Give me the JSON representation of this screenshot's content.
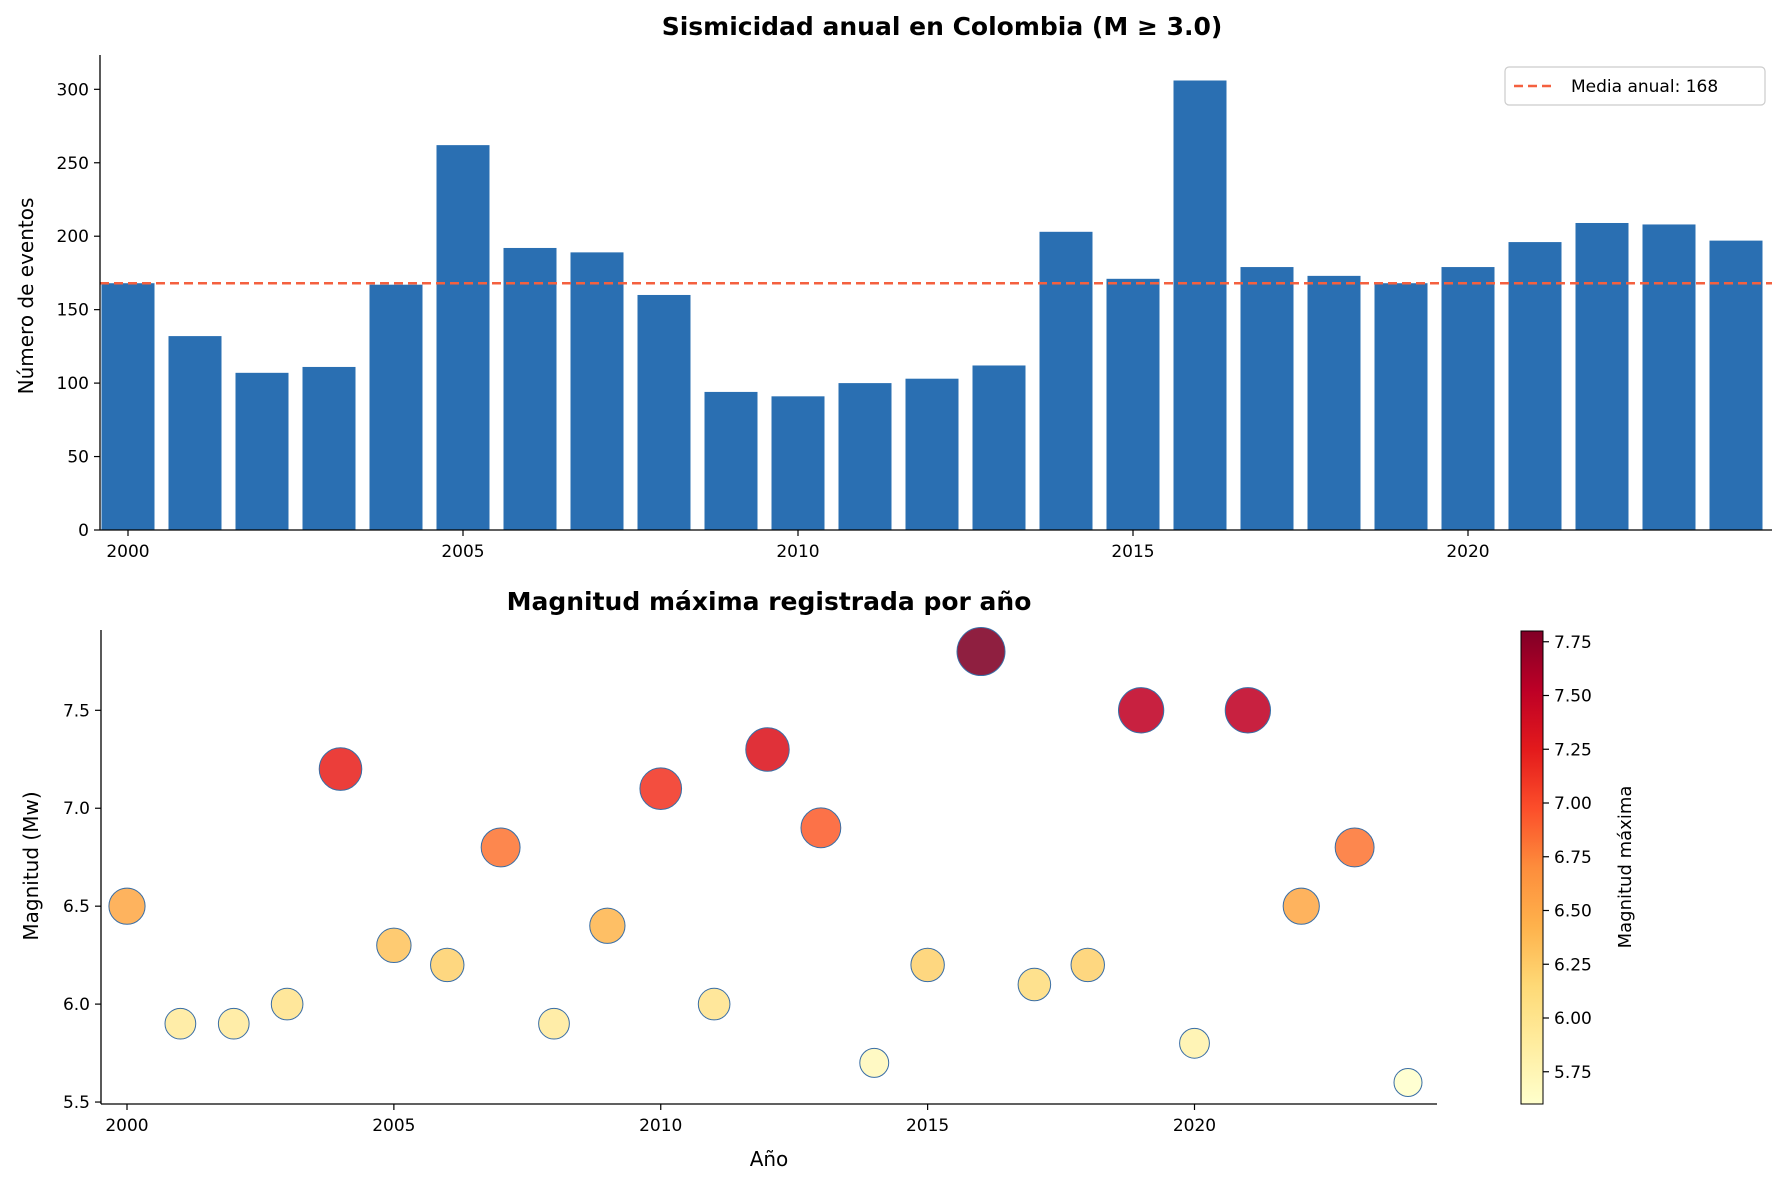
{
  "chart_data": [
    {
      "type": "bar",
      "title": "Sismicidad anual en Colombia (M ≥ 3.0)",
      "xlabel": "",
      "ylabel": "Número de eventos",
      "categories": [
        2000,
        2001,
        2002,
        2003,
        2004,
        2005,
        2006,
        2007,
        2008,
        2009,
        2010,
        2011,
        2012,
        2013,
        2014,
        2015,
        2016,
        2017,
        2018,
        2019,
        2020,
        2021,
        2022,
        2023,
        2024
      ],
      "values": [
        168,
        132,
        107,
        111,
        167,
        262,
        192,
        189,
        160,
        94,
        91,
        100,
        103,
        112,
        203,
        171,
        306,
        179,
        173,
        168,
        179,
        196,
        209,
        208,
        197
      ],
      "ylim": [
        0,
        322
      ],
      "yticks": [
        0,
        50,
        100,
        150,
        200,
        250,
        300
      ],
      "xticks": [
        2000,
        2005,
        2010,
        2015,
        2020
      ],
      "bar_color": "#2a6fb2",
      "mean_line": {
        "value": 168,
        "label": "Media anual: 168",
        "color": "#f4603f"
      },
      "legend_position": "upper right",
      "grid": false
    },
    {
      "type": "scatter",
      "title": "Magnitud máxima registrada por año",
      "xlabel": "Año",
      "ylabel": "Magnitud (Mw)",
      "x": [
        2000,
        2001,
        2002,
        2003,
        2004,
        2005,
        2006,
        2007,
        2008,
        2009,
        2010,
        2011,
        2012,
        2013,
        2014,
        2015,
        2016,
        2017,
        2018,
        2019,
        2020,
        2021,
        2022,
        2023,
        2024
      ],
      "y": [
        6.5,
        5.9,
        5.9,
        6.0,
        7.2,
        6.3,
        6.2,
        6.8,
        5.9,
        6.4,
        7.1,
        6.0,
        7.3,
        6.9,
        5.7,
        6.2,
        7.8,
        6.1,
        6.2,
        7.5,
        5.8,
        7.5,
        6.5,
        6.8,
        5.6
      ],
      "ylim": [
        5.49,
        7.91
      ],
      "yticks": [
        5.5,
        6.0,
        6.5,
        7.0,
        7.5
      ],
      "xticks": [
        2000,
        2005,
        2010,
        2015,
        2020
      ],
      "marker_edge_color": "#3a6ea5",
      "colorbar": {
        "label": "Magnitud máxima",
        "range": [
          5.6,
          7.8
        ],
        "ticks": [
          "5.75",
          "6.00",
          "6.25",
          "6.50",
          "6.75",
          "7.00",
          "7.25",
          "7.50",
          "7.75"
        ],
        "colormap": "YlOrRd"
      },
      "grid": false
    }
  ]
}
